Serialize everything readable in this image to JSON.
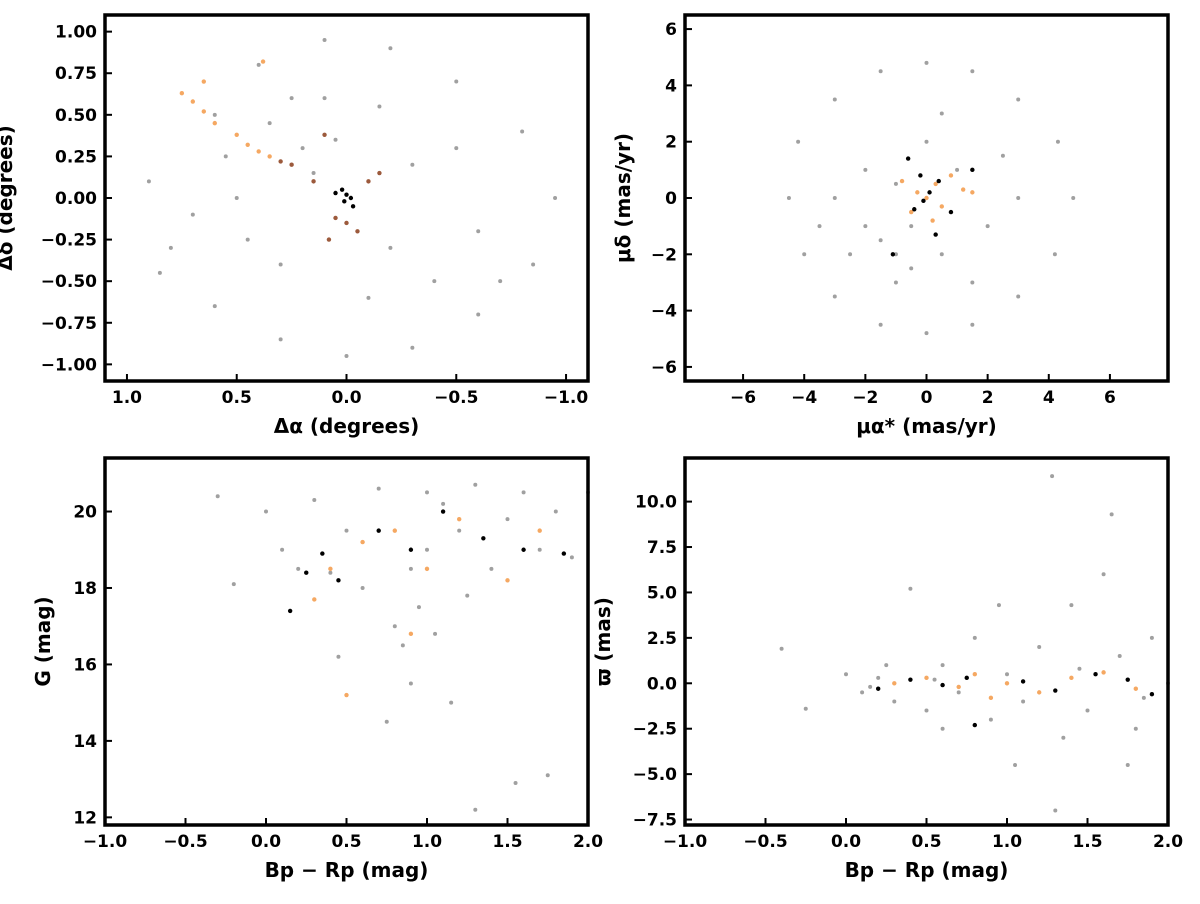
{
  "chart_data": [
    {
      "type": "scatter",
      "xlabel": "Δα (degrees)",
      "ylabel": "Δδ (degrees)",
      "xlim": [
        1.1,
        -1.1
      ],
      "ylim": [
        -1.1,
        1.1
      ],
      "xticks": [
        {
          "value": 1.0,
          "label": "1.0"
        },
        0.5,
        {
          "value": 0.0,
          "label": "0.0"
        },
        {
          "value": -0.5,
          "label": "−0.5"
        },
        {
          "value": -1.0,
          "label": "−1.0"
        }
      ],
      "yticks": [
        {
          "value": 1.0,
          "label": "1.00"
        },
        0.75,
        {
          "value": 0.5,
          "label": "0.50"
        },
        0.25,
        {
          "value": 0.0,
          "label": "0.00"
        },
        {
          "value": -0.25,
          "label": "−0.25"
        },
        {
          "value": -0.5,
          "label": "−0.50"
        },
        {
          "value": -0.75,
          "label": "−0.75"
        },
        {
          "value": -1.0,
          "label": "−1.00"
        }
      ],
      "series": [
        {
          "color": "#a0a0a0",
          "x": [
            0.9,
            0.8,
            0.6,
            0.4,
            0.1,
            -0.2,
            -0.5,
            -0.8,
            -0.95,
            -0.85,
            -0.6,
            -0.3,
            0.0,
            0.3,
            0.6,
            0.85,
            0.5,
            0.2,
            -0.3,
            -0.2,
            0.3,
            -0.6,
            -0.5,
            0.7,
            0.1,
            -0.1,
            0.35,
            0.15,
            -0.7,
            0.45,
            0.25,
            0.05,
            -0.15,
            -0.4,
            0.55
          ],
          "values": [
            0.1,
            -0.3,
            0.5,
            0.8,
            0.95,
            0.9,
            0.7,
            0.4,
            0.0,
            -0.4,
            -0.7,
            -0.9,
            -0.95,
            -0.85,
            -0.65,
            -0.45,
            0.0,
            0.3,
            0.2,
            -0.3,
            -0.4,
            -0.2,
            0.3,
            -0.1,
            0.6,
            -0.6,
            0.45,
            0.15,
            -0.5,
            -0.25,
            0.6,
            0.35,
            0.55,
            -0.5,
            0.25
          ]
        },
        {
          "color": "#f5a862",
          "x": [
            0.75,
            0.7,
            0.65,
            0.6,
            0.5,
            0.45,
            0.4,
            0.35,
            0.38,
            0.65
          ],
          "values": [
            0.63,
            0.58,
            0.52,
            0.45,
            0.38,
            0.32,
            0.28,
            0.25,
            0.82,
            0.7
          ]
        },
        {
          "color": "#9c5a3c",
          "x": [
            0.3,
            0.25,
            0.15,
            0.1,
            -0.1,
            -0.15,
            0.05,
            0.0,
            -0.05,
            0.08
          ],
          "values": [
            0.22,
            0.2,
            0.1,
            0.38,
            0.1,
            0.15,
            -0.12,
            -0.15,
            -0.2,
            -0.25
          ]
        },
        {
          "color": "#000000",
          "x": [
            0.02,
            0.0,
            -0.02,
            -0.03,
            0.01,
            0.05
          ],
          "values": [
            0.05,
            0.02,
            0.0,
            -0.05,
            -0.02,
            0.03
          ]
        }
      ]
    },
    {
      "type": "scatter",
      "xlabel": "μα* (mas/yr)",
      "ylabel": "μδ (mas/yr)",
      "xlim": [
        -7.9,
        7.9
      ],
      "ylim": [
        -6.5,
        6.5
      ],
      "xticks": [
        {
          "value": -6,
          "label": "−6"
        },
        {
          "value": -4,
          "label": "−4"
        },
        {
          "value": -2,
          "label": "−2"
        },
        0,
        2,
        4,
        6
      ],
      "yticks": [
        {
          "value": -6,
          "label": "−6"
        },
        {
          "value": -4,
          "label": "−4"
        },
        {
          "value": -2,
          "label": "−2"
        },
        0,
        2,
        4,
        6
      ],
      "series": [
        {
          "color": "#a0a0a0",
          "x": [
            -4.5,
            -4,
            -3,
            -1.5,
            0,
            1.5,
            3,
            4.2,
            4.8,
            4.3,
            3,
            1.5,
            0,
            -1.5,
            -3,
            -4.2,
            -2,
            -1,
            -1.5,
            -0.5,
            -2.5,
            -1,
            0.5,
            1,
            2,
            -3,
            -2,
            0,
            2.5,
            -0.5,
            1.5,
            -3.5,
            3,
            -1,
            0.5
          ],
          "values": [
            0,
            -2,
            -3.5,
            -4.5,
            -4.8,
            -4.5,
            -3.5,
            -2,
            0,
            2,
            3.5,
            4.5,
            4.8,
            4.5,
            3.5,
            2,
            -1,
            -2,
            -1.5,
            -1,
            -2,
            -3,
            -2,
            1,
            -1,
            0,
            1,
            2,
            1.5,
            -2.5,
            -3,
            -1,
            0,
            0.5,
            3
          ]
        },
        {
          "color": "#f5a862",
          "x": [
            0,
            0.3,
            -0.3,
            0.5,
            -0.5,
            0.8,
            1.2,
            -0.8,
            0.2,
            1.5
          ],
          "values": [
            0,
            0.5,
            0.2,
            -0.3,
            -0.5,
            0.8,
            0.3,
            0.6,
            -0.8,
            0.2
          ]
        },
        {
          "color": "#000000",
          "x": [
            0.1,
            -0.1,
            0.4,
            -0.4,
            1.5,
            -1.1,
            0.3,
            -0.6,
            0.8,
            -0.2
          ],
          "values": [
            0.2,
            -0.1,
            0.6,
            -0.4,
            1.0,
            -2.0,
            -1.3,
            1.4,
            -0.5,
            0.8
          ]
        }
      ]
    },
    {
      "type": "scatter",
      "xlabel": "Bp − Rp (mag)",
      "ylabel": "G (mag)",
      "xlim": [
        -1.0,
        2.0
      ],
      "ylim": [
        11.8,
        21.4
      ],
      "xticks": [
        {
          "value": -1.0,
          "label": "−1.0"
        },
        {
          "value": -0.5,
          "label": "−0.5"
        },
        {
          "value": 0.0,
          "label": "0.0"
        },
        0.5,
        {
          "value": 1.0,
          "label": "1.0"
        },
        1.5,
        {
          "value": 2.0,
          "label": "2.0"
        }
      ],
      "yticks": [
        12,
        14,
        16,
        18,
        20
      ],
      "series": [
        {
          "color": "#a0a0a0",
          "x": [
            -0.3,
            -0.2,
            0,
            0.1,
            0.2,
            0.3,
            0.5,
            0.6,
            0.7,
            0.8,
            0.85,
            0.9,
            0.95,
            1,
            1.05,
            1.1,
            1.2,
            1.3,
            1.4,
            1.5,
            1.6,
            1.7,
            1.8,
            1.9,
            2.0,
            0.75,
            1.15,
            1.3,
            1.55,
            1.75,
            0.4,
            1.0,
            0.9,
            1.25,
            0.45
          ],
          "values": [
            20.4,
            18.1,
            20,
            19,
            18.5,
            20.3,
            19.5,
            18,
            20.6,
            17,
            16.5,
            18.5,
            17.5,
            19,
            16.8,
            20.2,
            19.5,
            20.7,
            18.5,
            19.8,
            20.5,
            19,
            20,
            18.8,
            20.5,
            14.5,
            15,
            12.2,
            12.9,
            13.1,
            18.4,
            20.5,
            15.5,
            17.8,
            16.2
          ]
        },
        {
          "color": "#f5a862",
          "x": [
            0.3,
            0.4,
            0.6,
            0.8,
            1.0,
            1.2,
            1.5,
            1.7,
            0.5,
            0.9
          ],
          "values": [
            17.7,
            18.5,
            19.2,
            19.5,
            18.5,
            19.8,
            18.2,
            19.5,
            15.2,
            16.8
          ]
        },
        {
          "color": "#000000",
          "x": [
            0.15,
            0.35,
            0.45,
            0.7,
            0.9,
            1.1,
            1.35,
            1.6,
            1.85,
            0.25
          ],
          "values": [
            17.4,
            18.9,
            18.2,
            19.5,
            19,
            20,
            19.3,
            19,
            18.9,
            18.4
          ]
        }
      ]
    },
    {
      "type": "scatter",
      "xlabel": "Bp − Rp (mag)",
      "ylabel": "ϖ (mas)",
      "xlim": [
        -1.0,
        2.0
      ],
      "ylim": [
        -7.8,
        12.4
      ],
      "xticks": [
        {
          "value": -1.0,
          "label": "−1.0"
        },
        {
          "value": -0.5,
          "label": "−0.5"
        },
        {
          "value": 0.0,
          "label": "0.0"
        },
        0.5,
        {
          "value": 1.0,
          "label": "1.0"
        },
        1.5,
        {
          "value": 2.0,
          "label": "2.0"
        }
      ],
      "yticks": [
        {
          "value": -7.5,
          "label": "−7.5"
        },
        {
          "value": -5.0,
          "label": "−5.0"
        },
        {
          "value": -2.5,
          "label": "−2.5"
        },
        {
          "value": 0.0,
          "label": "0.0"
        },
        2.5,
        {
          "value": 5.0,
          "label": "5.0"
        },
        7.5,
        {
          "value": 10.0,
          "label": "10.0"
        }
      ],
      "series": [
        {
          "color": "#a0a0a0",
          "x": [
            -0.4,
            -0.25,
            0,
            0.1,
            0.2,
            0.3,
            0.4,
            0.5,
            0.6,
            0.7,
            0.8,
            0.9,
            0.95,
            1,
            1.1,
            1.2,
            1.28,
            1.3,
            1.4,
            1.5,
            1.6,
            1.65,
            1.7,
            1.8,
            1.9,
            2.0,
            1.35,
            0.6,
            1.05,
            1.75,
            0.25,
            0.55,
            1.45,
            1.85,
            0.15
          ],
          "values": [
            1.9,
            -1.4,
            0.5,
            -0.5,
            0.3,
            -1,
            5.2,
            -1.5,
            1,
            -0.5,
            2.5,
            -2,
            4.3,
            0.5,
            -1,
            2,
            11.4,
            -7,
            4.3,
            -1.5,
            6,
            9.3,
            1.5,
            -2.5,
            2.5,
            0,
            -3,
            -2.5,
            -4.5,
            -4.5,
            1,
            0.2,
            0.8,
            -0.8,
            -0.2
          ]
        },
        {
          "color": "#f5a862",
          "x": [
            0.3,
            0.5,
            0.7,
            0.8,
            1,
            1.2,
            1.4,
            1.6,
            1.8,
            0.9
          ],
          "values": [
            0,
            0.3,
            -0.2,
            0.5,
            0,
            -0.5,
            0.3,
            0.6,
            -0.3,
            -0.8
          ]
        },
        {
          "color": "#000000",
          "x": [
            0.2,
            0.4,
            0.6,
            0.75,
            0.8,
            1.1,
            1.3,
            1.55,
            1.75,
            1.9
          ],
          "values": [
            -0.3,
            0.2,
            -0.1,
            0.3,
            -2.3,
            0.1,
            -0.4,
            0.5,
            0.2,
            -0.6
          ]
        }
      ]
    }
  ]
}
